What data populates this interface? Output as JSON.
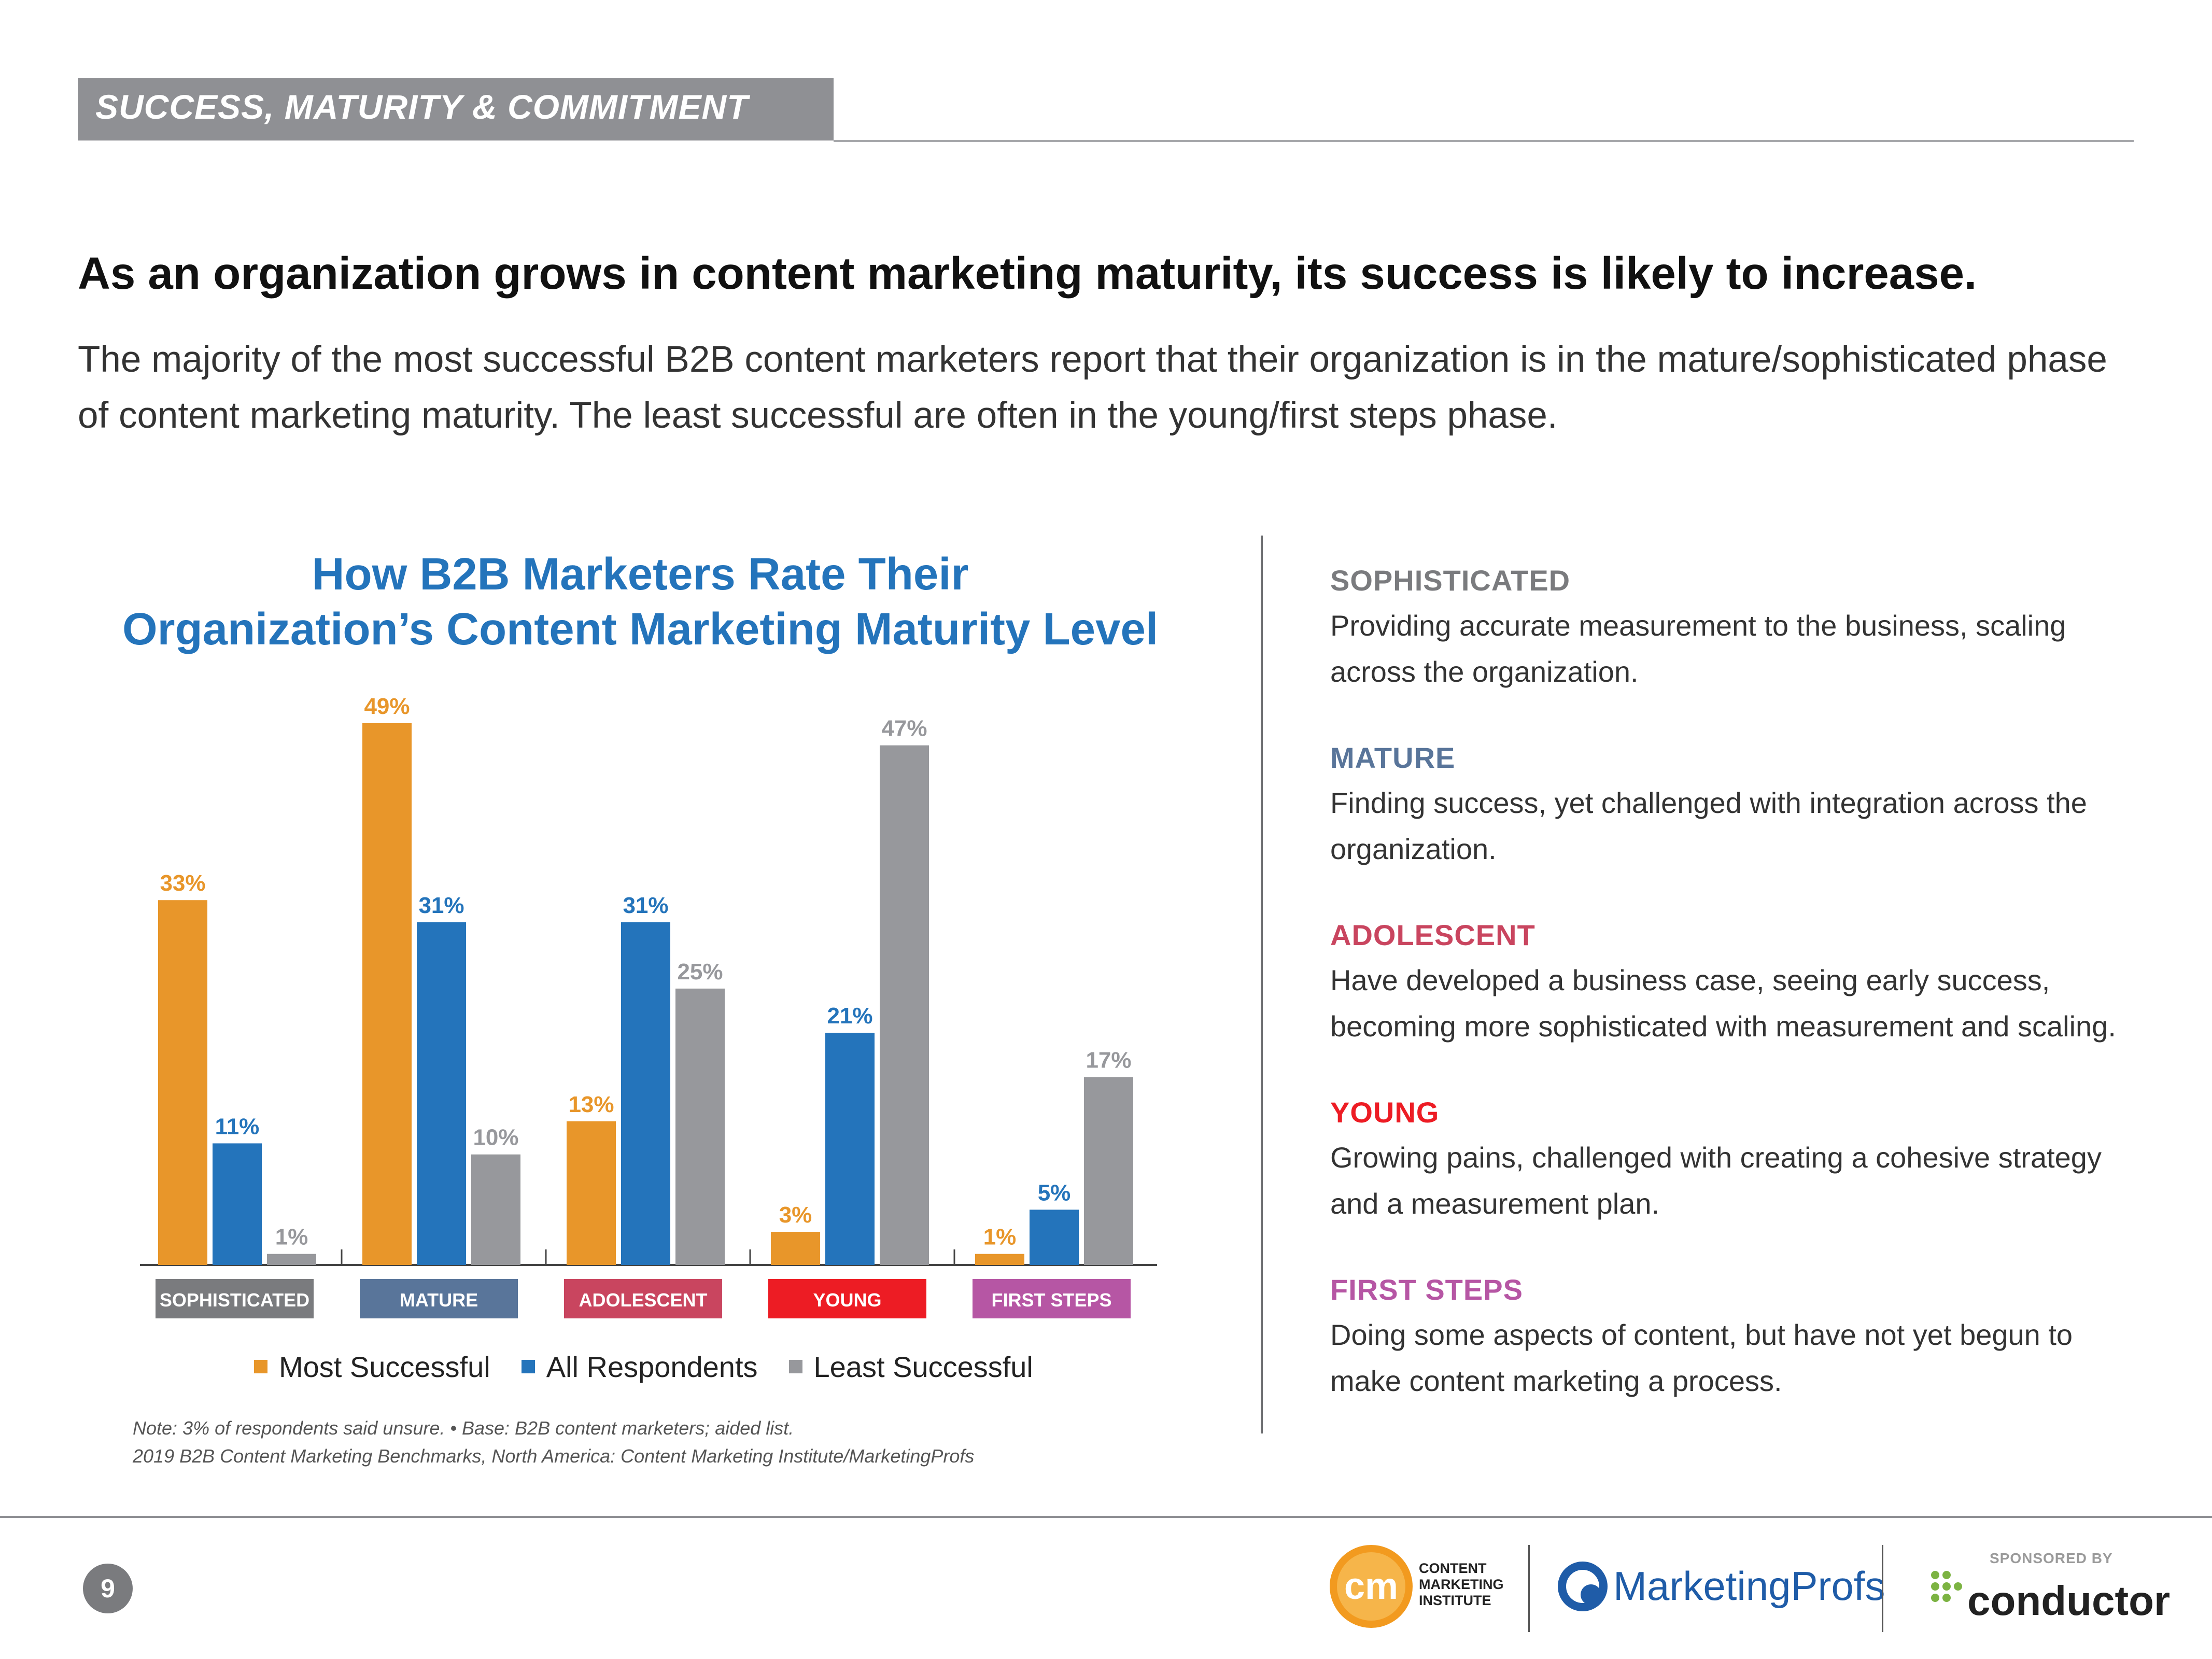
{
  "header": {
    "banner_title": "SUCCESS, MATURITY & COMMITMENT",
    "headline": "As an organization grows in content marketing maturity, its success is likely to increase.",
    "subtext": "The majority of the most successful B2B content marketers report that their organization is in the mature/sophisticated phase of content marketing maturity. The least successful are often in the young/first steps phase."
  },
  "chart_data": {
    "type": "bar",
    "title_line1": "How B2B Marketers Rate Their",
    "title_line2": "Organization’s Content Marketing Maturity Level",
    "categories": [
      "SOPHISTICATED",
      "MATURE",
      "ADOLESCENT",
      "YOUNG",
      "FIRST STEPS"
    ],
    "category_colors": [
      "#7a7b7e",
      "#59759a",
      "#c9455f",
      "#ed1c24",
      "#b656a4"
    ],
    "series": [
      {
        "name": "Most Successful",
        "color": "#e8962a",
        "label_color": "#e8962a",
        "values": [
          33,
          49,
          13,
          3,
          1
        ]
      },
      {
        "name": "All Respondents",
        "color": "#2474bb",
        "label_color": "#2474bb",
        "values": [
          11,
          31,
          31,
          21,
          5
        ]
      },
      {
        "name": "Least Successful",
        "color": "#97989c",
        "label_color": "#97989c",
        "values": [
          1,
          10,
          25,
          47,
          17
        ]
      }
    ],
    "value_suffix": "%",
    "ylim": [
      0,
      50
    ],
    "xlabel": "",
    "ylabel": "",
    "legend_position": "bottom",
    "note_line1": "Note: 3% of respondents said unsure. •  Base: B2B content marketers; aided list.",
    "note_line2": "2019 B2B Content Marketing Benchmarks, North America: Content Marketing Institute/MarketingProfs"
  },
  "definitions": [
    {
      "title": "SOPHISTICATED",
      "color": "#7a7b7e",
      "body": "Providing accurate measurement to the business, scaling across the organization."
    },
    {
      "title": "MATURE",
      "color": "#59759a",
      "body": "Finding success, yet challenged with integration across the organization."
    },
    {
      "title": "ADOLESCENT",
      "color": "#c9455f",
      "body": "Have developed a business case, seeing early success, becoming more sophisticated with measurement and scaling."
    },
    {
      "title": "YOUNG",
      "color": "#ed1c24",
      "body": "Growing pains, challenged with creating a cohesive strategy and a measurement plan."
    },
    {
      "title": "FIRST STEPS",
      "color": "#b656a4",
      "body": "Doing some aspects of content, but have not yet begun to make content marketing a process."
    }
  ],
  "footer": {
    "page_number": "9",
    "cmi_logo_mark": "cm",
    "cmi_line1": "CONTENT",
    "cmi_line2": "MARKETING",
    "cmi_line3": "INSTITUTE",
    "marketingprofs": "MarketingProfs",
    "sponsored_by": "SPONSORED BY",
    "conductor": "conductor"
  }
}
